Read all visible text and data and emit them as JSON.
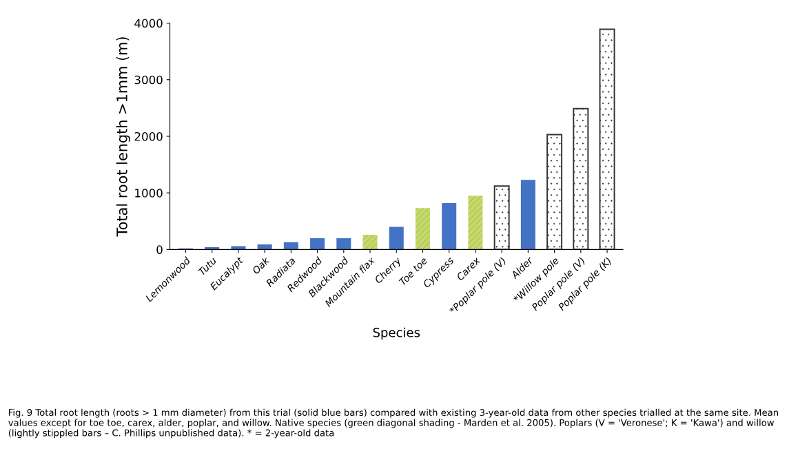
{
  "chart_data": {
    "type": "bar",
    "xlabel": "Species",
    "ylabel": "Total root length >1mm (m)",
    "categories": [
      "Lemonwood",
      "Tutu",
      "Eucalypt",
      "Oak",
      "Radiata",
      "Redwood",
      "Blackwood",
      "Mountain flax",
      "Cherry",
      "Toe toe",
      "Cypress",
      "Carex",
      "*Poplar pole (V)",
      "Alder",
      "*Willow pole",
      "Poplar pole (V)",
      "Poplar pole (K)"
    ],
    "values": [
      20,
      40,
      60,
      90,
      130,
      200,
      200,
      260,
      400,
      730,
      820,
      950,
      1120,
      1230,
      2030,
      2490,
      3890
    ],
    "colors": [
      "#4472c4",
      "#4472c4",
      "#4472c4",
      "#4472c4",
      "#4472c4",
      "#4472c4",
      "#4472c4",
      "#c5d96b",
      "#4472c4",
      "#c5d96b",
      "#4472c4",
      "#c5d96b",
      "#333333",
      "#4472c4",
      "#333333",
      "#333333",
      "#333333"
    ],
    "ylim": [
      0,
      4000
    ],
    "yticks": [
      0,
      1000,
      2000,
      3000,
      4000
    ],
    "grid": false,
    "legend": false,
    "annotations": [
      "Fig. 9 Total root length (roots > 1 mm diameter) from this trial (solid blue bars) compared with existing 3-year-old data from other species trialled at the same site. Mean values except for toe toe, carex, alder, poplar, and willow. Native species (green diagonal shading - Marden et al. 2005). Poplars (V = 'Veronese'; K = 'Kawa') and willow (lightly stippled bars – C. Phillips unpublished data). * = 2-year-old data"
    ]
  }
}
